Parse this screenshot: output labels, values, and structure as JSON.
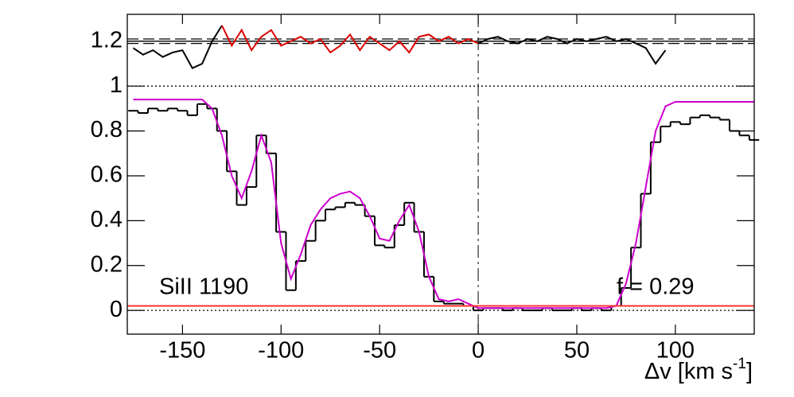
{
  "chart_data": {
    "type": "spectrum",
    "annotations": [
      "SiII 1190",
      "f = 0.29"
    ],
    "x_label_parts": [
      "Δv [km s",
      "-1",
      "]"
    ],
    "xlim": [
      -178,
      140
    ],
    "ylim": [
      -0.106,
      1.32
    ],
    "xticks": [
      -150,
      -100,
      -50,
      0,
      50,
      100
    ],
    "yticks": [
      0,
      0.2,
      0.4,
      0.6,
      0.8,
      1,
      1.2
    ],
    "vline": 0,
    "reference_lines": [
      {
        "value": 1.21,
        "style": "dashed",
        "color": "#000000"
      },
      {
        "value": 1.2,
        "style": "solid",
        "color": "#000000"
      },
      {
        "value": 1.19,
        "style": "dashed",
        "color": "#000000"
      },
      {
        "value": 1,
        "style": "dotted",
        "color": "#000000"
      },
      {
        "value": 0,
        "style": "dotted",
        "color": "#000000"
      }
    ],
    "series": [
      {
        "name": "flux",
        "kind": "step",
        "color": "#000000",
        "x": [
          -175,
          -170,
          -165,
          -160,
          -155,
          -150,
          -145,
          -140,
          -135,
          -130,
          -125,
          -120,
          -115,
          -110,
          -105,
          -100,
          -95,
          -90,
          -85,
          -80,
          -75,
          -70,
          -65,
          -60,
          -55,
          -50,
          -45,
          -40,
          -35,
          -30,
          -25,
          -20,
          -15,
          -10,
          -5,
          0,
          5,
          10,
          15,
          20,
          25,
          30,
          35,
          40,
          45,
          50,
          55,
          60,
          65,
          70,
          75,
          80,
          85,
          90,
          95,
          100,
          105,
          110,
          115,
          120,
          125,
          130,
          135,
          140
        ],
        "values": [
          0.89,
          0.88,
          0.9,
          0.89,
          0.9,
          0.89,
          0.87,
          0.92,
          0.9,
          0.8,
          0.62,
          0.47,
          0.55,
          0.78,
          0.7,
          0.35,
          0.09,
          0.22,
          0.31,
          0.4,
          0.45,
          0.46,
          0.48,
          0.47,
          0.42,
          0.29,
          0.28,
          0.38,
          0.48,
          0.35,
          0.15,
          0.04,
          0.03,
          0.03,
          0.02,
          0.0,
          0.01,
          0.01,
          0.0,
          0.01,
          0.0,
          0.0,
          0.01,
          0.0,
          0.0,
          0.01,
          0.0,
          0.01,
          0.0,
          0.02,
          0.1,
          0.28,
          0.52,
          0.75,
          0.82,
          0.84,
          0.83,
          0.86,
          0.87,
          0.86,
          0.85,
          0.8,
          0.78,
          0.76
        ]
      },
      {
        "name": "model",
        "kind": "line",
        "color": "#cc00cc",
        "x": [
          -175,
          -170,
          -165,
          -160,
          -155,
          -150,
          -145,
          -140,
          -135,
          -130,
          -125,
          -120,
          -115,
          -110,
          -105,
          -100,
          -95,
          -90,
          -85,
          -80,
          -75,
          -70,
          -65,
          -60,
          -55,
          -50,
          -45,
          -40,
          -35,
          -30,
          -25,
          -20,
          -15,
          -10,
          -5,
          0,
          5,
          10,
          15,
          20,
          25,
          30,
          35,
          40,
          45,
          50,
          55,
          60,
          65,
          70,
          75,
          80,
          85,
          90,
          95,
          100,
          105,
          110,
          115,
          120,
          125,
          130,
          135,
          140
        ],
        "values": [
          0.94,
          0.94,
          0.94,
          0.94,
          0.94,
          0.94,
          0.94,
          0.94,
          0.9,
          0.78,
          0.6,
          0.5,
          0.62,
          0.78,
          0.66,
          0.3,
          0.14,
          0.25,
          0.38,
          0.45,
          0.5,
          0.52,
          0.53,
          0.5,
          0.42,
          0.32,
          0.31,
          0.4,
          0.47,
          0.35,
          0.15,
          0.05,
          0.04,
          0.05,
          0.03,
          0.01,
          0.01,
          0.01,
          0.01,
          0.01,
          0.01,
          0.01,
          0.01,
          0.01,
          0.01,
          0.01,
          0.01,
          0.01,
          0.01,
          0.02,
          0.12,
          0.3,
          0.55,
          0.8,
          0.91,
          0.93,
          0.93,
          0.93,
          0.93,
          0.93,
          0.93,
          0.93,
          0.93,
          0.93
        ]
      },
      {
        "name": "error",
        "kind": "line",
        "color": "#ff3333",
        "x": [
          -178,
          140
        ],
        "values": [
          0.02,
          0.02
        ]
      },
      {
        "name": "residual-left",
        "kind": "line",
        "color": "#000000",
        "x": [
          -175,
          -170,
          -165,
          -160,
          -155,
          -150,
          -145,
          -140,
          -135,
          -130
        ],
        "values": [
          1.17,
          1.14,
          1.16,
          1.13,
          1.15,
          1.16,
          1.08,
          1.1,
          1.2,
          1.27
        ]
      },
      {
        "name": "residual-masked",
        "kind": "line",
        "color": "#dd0000",
        "x": [
          -130,
          -125,
          -120,
          -115,
          -110,
          -105,
          -100,
          -95,
          -90,
          -85,
          -80,
          -75,
          -70,
          -65,
          -60,
          -55,
          -50,
          -45,
          -40,
          -35,
          -30,
          -25,
          -20,
          -15,
          -10,
          -5,
          0
        ],
        "values": [
          1.27,
          1.18,
          1.25,
          1.16,
          1.22,
          1.25,
          1.18,
          1.2,
          1.22,
          1.19,
          1.21,
          1.15,
          1.18,
          1.23,
          1.16,
          1.22,
          1.19,
          1.16,
          1.2,
          1.15,
          1.22,
          1.23,
          1.2,
          1.22,
          1.19,
          1.21,
          1.19
        ]
      },
      {
        "name": "residual-right",
        "kind": "line",
        "color": "#000000",
        "x": [
          0,
          5,
          10,
          15,
          20,
          25,
          30,
          35,
          40,
          45,
          50,
          55,
          60,
          65,
          70,
          75,
          80,
          85,
          90,
          95
        ],
        "values": [
          1.19,
          1.21,
          1.22,
          1.2,
          1.19,
          1.21,
          1.2,
          1.22,
          1.21,
          1.19,
          1.21,
          1.2,
          1.21,
          1.22,
          1.2,
          1.21,
          1.19,
          1.17,
          1.1,
          1.16
        ]
      }
    ]
  }
}
